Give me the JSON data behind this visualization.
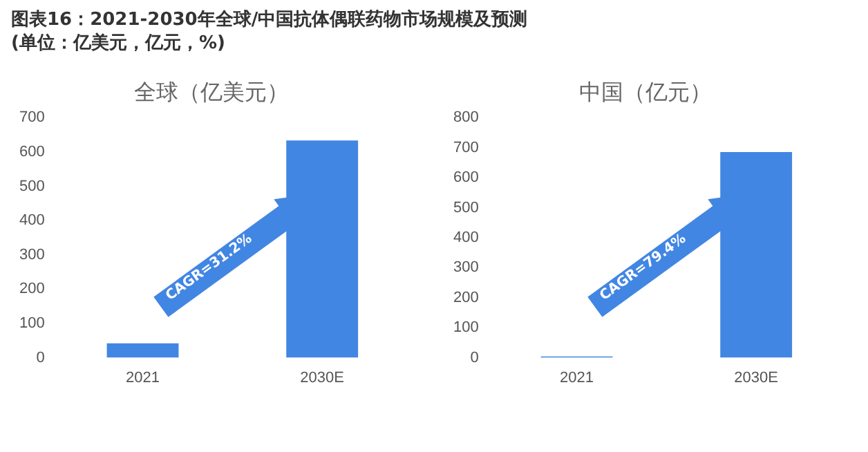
{
  "chart_data": [
    {
      "type": "bar",
      "title": "全球（亿美元）",
      "categories": [
        "2021",
        "2030E"
      ],
      "values": [
        42,
        634
      ],
      "color": "#4286e3",
      "ylim": [
        0,
        700
      ],
      "yticks": [
        0,
        100,
        200,
        300,
        400,
        500,
        600,
        700
      ],
      "grid": false,
      "legend": false,
      "annotations": [
        "图表16：2021-2030年全球/中国抗体偶联药物市场规模及预测(单位：亿美元，亿元，%)",
        "CAGR=31.2%"
      ]
    },
    {
      "type": "bar",
      "title": "中国（亿元）",
      "categories": [
        "2021",
        "2030E"
      ],
      "values": [
        4,
        686
      ],
      "color": "#4286e3",
      "ylim": [
        0,
        800
      ],
      "yticks": [
        0,
        100,
        200,
        300,
        400,
        500,
        600,
        700,
        800
      ],
      "grid": false,
      "legend": false,
      "annotations": [
        "CAGR=79.4%"
      ]
    }
  ]
}
